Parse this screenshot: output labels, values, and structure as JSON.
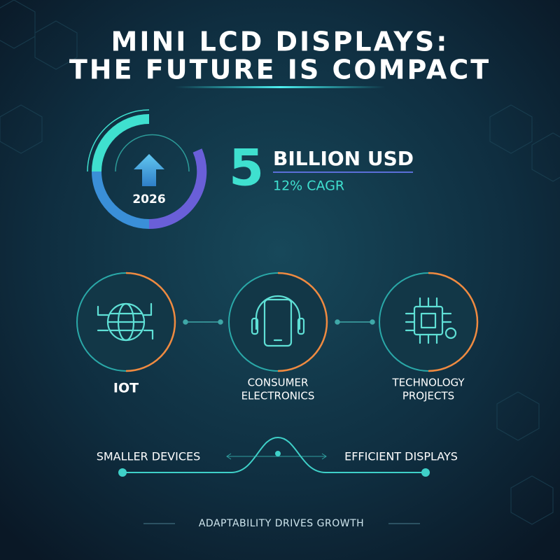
{
  "header": {
    "title_lines": [
      "MINI LCD DISPLAYS:",
      "THE FUTURE IS COMPACT"
    ]
  },
  "stat": {
    "year": "2026",
    "number": "5",
    "unit": "BILLION USD",
    "growth": "12% CAGR"
  },
  "applications": [
    {
      "label_lines": [
        "IOT"
      ]
    },
    {
      "label_lines": [
        "CONSUMER",
        "ELECTRONICS"
      ]
    },
    {
      "label_lines": [
        "TECHNOLOGY",
        "PROJECTS"
      ]
    }
  ],
  "tradeoff": {
    "left": "SMALLER DEVICES",
    "right": "EFFICIENT DISPLAYS"
  },
  "footer": "ADAPTABILITY DRIVES GROWTH"
}
